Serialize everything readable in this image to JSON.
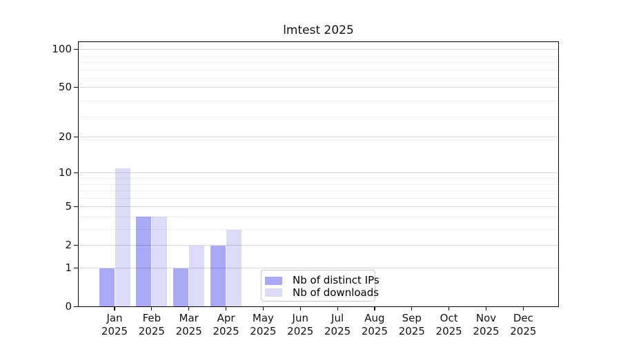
{
  "chart_data": {
    "type": "bar",
    "title": "lmtest 2025",
    "x_year": "2025",
    "categories": [
      "Jan",
      "Feb",
      "Mar",
      "Apr",
      "May",
      "Jun",
      "Jul",
      "Aug",
      "Sep",
      "Oct",
      "Nov",
      "Dec"
    ],
    "series": [
      {
        "name": "Nb of distinct IPs",
        "color": "#a9a9f7",
        "values": [
          1,
          4,
          1,
          2,
          0,
          0,
          0,
          0,
          0,
          0,
          0,
          0
        ]
      },
      {
        "name": "Nb of downloads",
        "color": "#dcdcf9",
        "values": [
          11,
          4,
          2,
          3,
          0,
          0,
          0,
          0,
          0,
          0,
          0,
          0
        ]
      }
    ],
    "y_axis": {
      "tick_values": [
        0,
        1,
        2,
        5,
        10,
        20,
        50,
        100
      ],
      "scale": "log10(1+value)",
      "minor_gridline_values": [
        3,
        4,
        6,
        7,
        8,
        9,
        19,
        29,
        39,
        59,
        69,
        79,
        89
      ],
      "ylim": [
        0,
        115
      ]
    },
    "grid": true,
    "legend": {
      "position": "bottom-center"
    }
  }
}
